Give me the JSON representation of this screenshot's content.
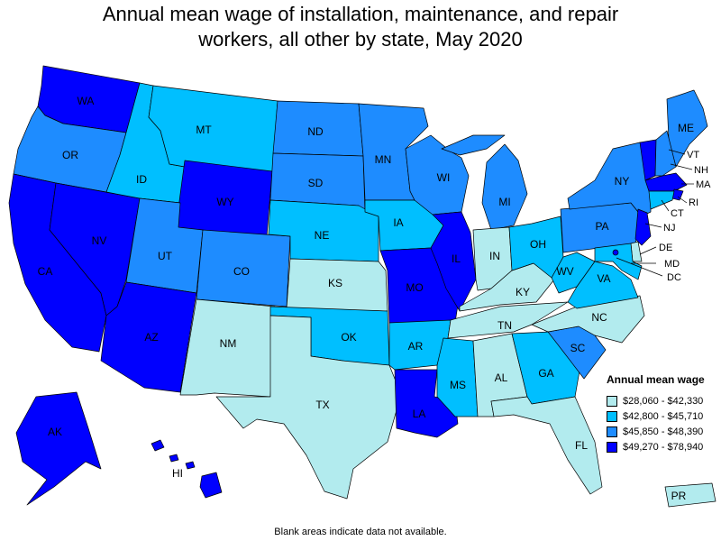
{
  "title": {
    "line1": "Annual mean wage of installation, maintenance, and repair",
    "line2": "workers, all other by state, May 2020"
  },
  "legend": {
    "title": "Annual mean wage",
    "bins": [
      {
        "label": "$28,060 - $42,330",
        "color": "#b2ebee"
      },
      {
        "label": "$42,800 - $45,710",
        "color": "#00bfff"
      },
      {
        "label": "$45,850 - $48,390",
        "color": "#1e8cff"
      },
      {
        "label": "$49,270 - $78,940",
        "color": "#0000ff"
      }
    ]
  },
  "note": "Blank areas indicate data not available.",
  "states": {
    "WA": 3,
    "OR": 2,
    "CA": 3,
    "NV": 3,
    "ID": 1,
    "MT": 1,
    "WY": 3,
    "UT": 2,
    "AZ": 3,
    "CO": 2,
    "NM": 0,
    "ND": 2,
    "SD": 2,
    "NE": 1,
    "KS": 0,
    "OK": 1,
    "TX": 0,
    "MN": 2,
    "IA": 1,
    "MO": 3,
    "AR": 1,
    "LA": 3,
    "WI": 2,
    "IL": 3,
    "MS": 1,
    "MI": 2,
    "IN": 0,
    "KY": 0,
    "TN": 0,
    "AL": 0,
    "OH": 1,
    "WV": 1,
    "GA": 1,
    "FL": 0,
    "SC": 2,
    "NC": 0,
    "VA": 1,
    "PA": 2,
    "NY": 2,
    "ME": 2,
    "VT": 3,
    "NH": 2,
    "MA": 3,
    "RI": 3,
    "CT": 1,
    "NJ": 3,
    "DE": 0,
    "MD": 1,
    "DC": 3,
    "AK": 3,
    "HI": 3,
    "PR": 0
  },
  "state_labels": {
    "WA": "WA",
    "OR": "OR",
    "CA": "CA",
    "NV": "NV",
    "ID": "ID",
    "MT": "MT",
    "WY": "WY",
    "UT": "UT",
    "AZ": "AZ",
    "CO": "CO",
    "NM": "NM",
    "ND": "ND",
    "SD": "SD",
    "NE": "NE",
    "KS": "KS",
    "OK": "OK",
    "TX": "TX",
    "MN": "MN",
    "IA": "IA",
    "MO": "MO",
    "AR": "AR",
    "LA": "LA",
    "WI": "WI",
    "IL": "IL",
    "MS": "MS",
    "MI": "MI",
    "IN": "IN",
    "KY": "KY",
    "TN": "TN",
    "AL": "AL",
    "OH": "OH",
    "WV": "WV",
    "GA": "GA",
    "FL": "FL",
    "SC": "SC",
    "NC": "NC",
    "VA": "VA",
    "PA": "PA",
    "NY": "NY",
    "ME": "ME",
    "VT": "VT",
    "NH": "NH",
    "MA": "MA",
    "RI": "RI",
    "CT": "CT",
    "NJ": "NJ",
    "DE": "DE",
    "MD": "MD",
    "DC": "DC",
    "AK": "AK",
    "HI": "HI",
    "PR": "PR"
  }
}
